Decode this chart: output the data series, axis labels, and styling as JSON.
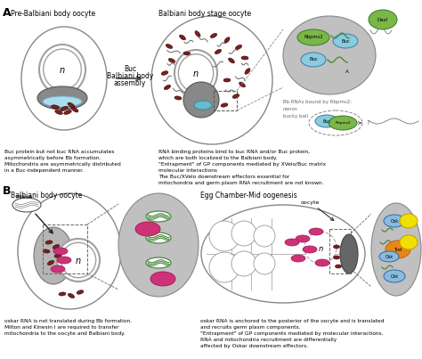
{
  "panel_A_label": "A",
  "panel_B_label": "B",
  "panel_A1_title": "Pre-Balbiani body oocyte",
  "panel_A2_title": "Balbiani body stage oocyte",
  "panel_B1_title": "Balbiani body oocyte",
  "panel_B2_title": "Egg Chamber-Mid oogenesis",
  "arrow_label_line1": "Buc",
  "arrow_label_line2": "Balbiani body",
  "arrow_label_line3": "assembly",
  "text_A1": "Buc protein but not buc RNA accumulates\nasymmetrically before Bb formation.\nMitochondria are asymmetrically distributed\nin a Buc-independent manner.",
  "text_A2": "RNA binding proteins bind to buc RNA and/or Buc protein,\nwhich are both localized to the Balbiani body.\n\"Entrapment\" of GP components mediated by XVelo/Buc matrix\nmolecular interactions\nThe Buc/XVelo downstream effectors essential for\nmitochondria and germ plasm RNA recruitment are not known.",
  "text_B1": "oskar RNA is not translated during Bb formation.\nMilton and Kinesin I are required to transfer\nmitochondria to the oocyte and Balbiani body.",
  "text_B2": "oskar RNA is anchored to the posterior of the oocyte and is translated\nand recruits germ plasm components.\n\"Entrapment\" of GP components mediated by molecular interactions.\nRNA and mitochondria recruitment are differentially\naffected by Oskar downstream effectors.",
  "nucleus_color": "#a0a0a0",
  "balbiani_color": "#888888",
  "mito_dark": "#7a2020",
  "mito_green": "#4a8a3f",
  "mito_pink": "#cc3377",
  "rbpms2_color": "#7ab648",
  "buc_color": "#88ccdd",
  "dazl_color": "#7ab648",
  "osk_color": "#88bbdd",
  "tud_color": "#e8861a",
  "yellow_color": "#f0e000",
  "background": "#ffffff",
  "cell_edge": "#888888",
  "zoom_fill": "#c0c0c0",
  "zoom_edge": "#888888"
}
